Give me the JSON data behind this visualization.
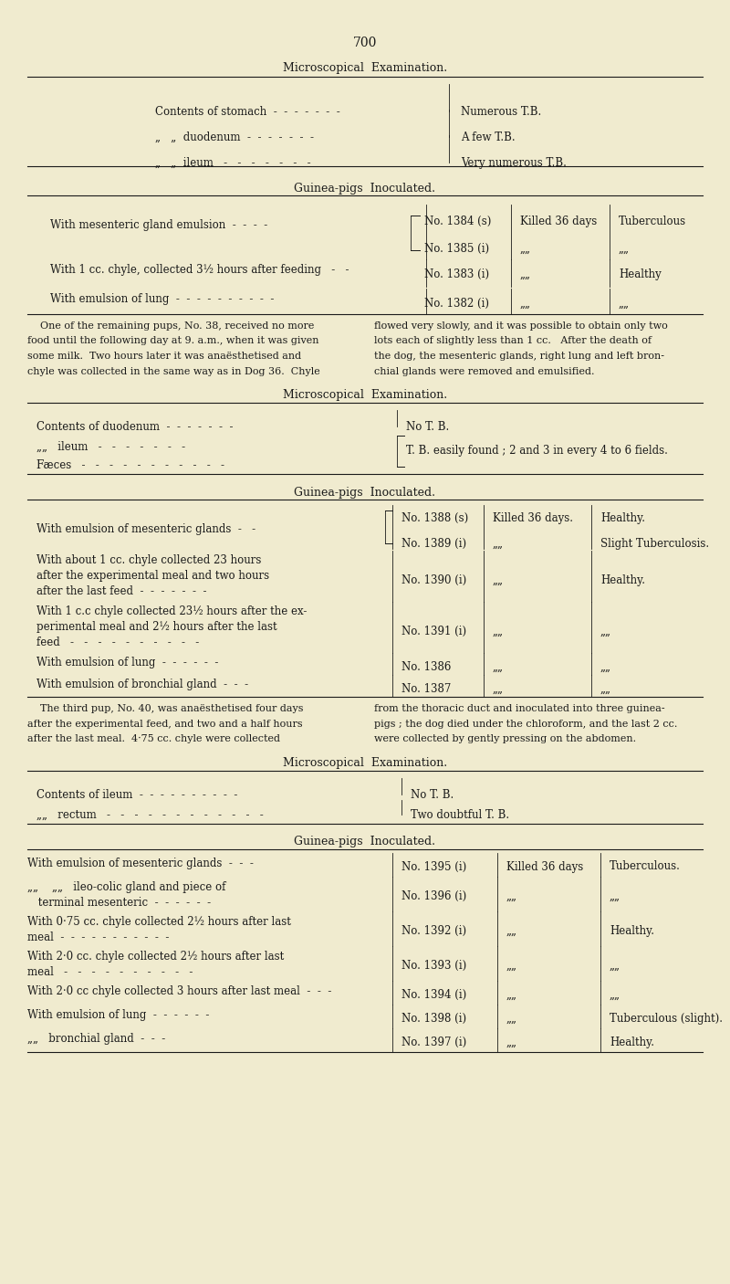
{
  "bg_color": "#f0ebcf",
  "text_color": "#1a1a1a",
  "page_number": "700",
  "section1_title": "Microscopical  Examination.",
  "sec1_rows": [
    [
      "Contents of stomach  -  -  -  -  -  -  -",
      "Numerous T.B."
    ],
    [
      "„   „  duodenum  -  -  -  -  -  -  -",
      "A few T.B."
    ],
    [
      "„   „  ileum   -   -   -   -   -   -   -",
      "Very numerous T.B."
    ]
  ],
  "section2_title": "Guinea-pigs  Inoculated.",
  "sec2_rows": [
    [
      "With mesenteric gland emulsion  -  -  -  -",
      "No. 1384 (s)",
      "Killed 36 days",
      "Tuberculous"
    ],
    [
      "",
      "No. 1385 (i)",
      "„„",
      "„„"
    ],
    [
      "With 1 cc. chyle, collected 3½ hours after feeding   -   -",
      "No. 1383 (i)",
      "„„",
      "Healthy"
    ],
    [
      "With emulsion of lung  -  -  -  -  -  -  -  -  -  -",
      "No. 1382 (i)",
      "„„",
      "„„"
    ]
  ],
  "para1_left": "    One of the remaining pups, No. 38, received no more\nfood until the following day at 9. a.m., when it was given\nsome milk.  Two hours later it was anaësthetised and\nchyle was collected in the same way as in Dog 36.  Chyle",
  "para1_right": "flowed very slowly, and it was possible to obtain only two\nlots each of slightly less than 1 cc.   After the death of\nthe dog, the mesenteric glands, right lung and left bron-\nchial glands were removed and emulsified.",
  "section3_title": "Microscopical  Examination.",
  "sec3_rows": [
    [
      "Contents of duodenum  -  -  -  -  -  -  -",
      "No T. B."
    ],
    [
      "„„   ileum   -   -   -   -   -   -   -",
      "T. B. easily found ; 2 and 3 in every 4 to 6 fields."
    ],
    [
      "Fæces   -   -   -   -   -   -   -   -   -   -   -",
      ""
    ]
  ],
  "section4_title": "Guinea-pigs  Inoculated.",
  "sec4_row0_label": "With emulsion of mesenteric glands  -   -",
  "sec4_row0_nos": [
    "No. 1388 (s)",
    "No. 1389 (i)"
  ],
  "sec4_row0_killed": [
    "Killed 36 days.",
    "„„"
  ],
  "sec4_row0_result": [
    "Healthy.",
    "Slight Tuberculosis."
  ],
  "sec4_rows": [
    [
      "With about 1 cc. chyle collected 23 hours\nafter the experimental meal and two hours\nafter the last feed  -  -  -  -  -  -  -",
      "No. 1390 (i)",
      "„„",
      "Healthy."
    ],
    [
      "With 1 c.c chyle collected 23½ hours after the ex-\nperimental meal and 2½ hours after the last\nfeed   -   -   -   -   -   -   -   -   -   -",
      "No. 1391 (i)",
      "„„",
      "„„"
    ],
    [
      "With emulsion of lung  -  -  -  -  -  -",
      "No. 1386",
      "„„",
      "„„"
    ],
    [
      "With emulsion of bronchial gland  -  -  -",
      "No. 1387",
      "„„",
      "„„"
    ]
  ],
  "para2_left": "    The third pup, No. 40, was anaësthetised four days\nafter the experimental feed, and two and a half hours\nafter the last meal.  4·75 cc. chyle were collected",
  "para2_right": "from the thoracic duct and inoculated into three guinea-\npigs ; the dog died under the chloroform, and the last 2 cc.\nwere collected by gently pressing on the abdomen.",
  "section5_title": "Microscopical  Examination.",
  "sec5_rows": [
    [
      "Contents of ileum  -  -  -  -  -  -  -  -  -  -",
      "No T. B."
    ],
    [
      "„„   rectum   -   -   -   -   -   -   -   -   -   -   -   -",
      "Two doubtful T. B."
    ]
  ],
  "section6_title": "Guinea-pigs  Inoculated.",
  "sec6_rows": [
    [
      "With emulsion of mesenteric glands  -  -  -",
      "No. 1395 (i)",
      "Killed 36 days",
      "Tuberculous."
    ],
    [
      "„„    „„   ileo-colic gland and piece of\n terminal mesenteric  -  -  -  -  -  -",
      "No. 1396 (i)",
      "„„",
      "„„"
    ],
    [
      "With 0·75 cc. chyle collected 2½ hours after last\nmeal  -  -  -  -  -  -  -  -  -  -  -",
      "No. 1392 (i)",
      "„„",
      "Healthy."
    ],
    [
      "With 2·0 cc. chyle collected 2½ hours after last\nmeal   -   -   -   -   -   -   -   -   -   -",
      "No. 1393 (i)",
      "„„",
      "„„"
    ],
    [
      "With 2·0 cc chyle collected 3 hours after last meal  -  -  -",
      "No. 1394 (i)",
      "„„",
      "„„"
    ],
    [
      "With emulsion of lung  -  -  -  -  -  -",
      "No. 1398 (i)",
      "„„",
      "Tuberculous (slight)."
    ],
    [
      "„„   bronchial gland  -  -  -",
      "No. 1397 (i)",
      "„„",
      "Healthy."
    ]
  ]
}
